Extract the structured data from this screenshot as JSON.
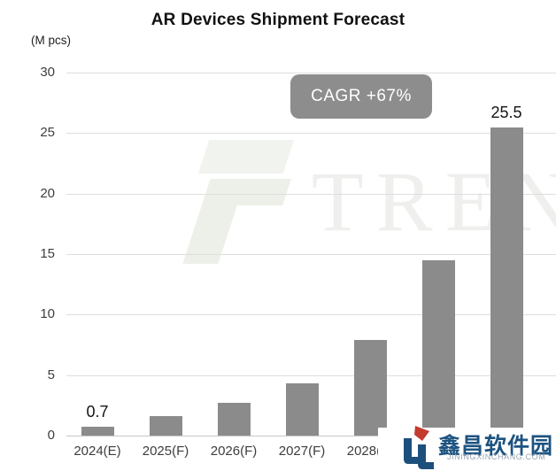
{
  "title": "AR Devices Shipment Forecast",
  "y_axis_unit": "(M pcs)",
  "annotation_badge": "CAGR +67%",
  "watermark": {
    "text": "TREN",
    "mark_name": "trendforce-logo-mark"
  },
  "logo": {
    "cn_text": "鑫昌软件园",
    "domain_text": "JININGXINCHANG.COM",
    "blue": "#1d5380",
    "red": "#c23b2e",
    "domain_gray": "#98a5b5"
  },
  "chart_data": {
    "type": "bar",
    "title": "AR Devices Shipment Forecast",
    "ylabel": "(M pcs)",
    "xlabel": "",
    "categories": [
      "2024(E)",
      "2025(F)",
      "2026(F)",
      "2027(F)",
      "2028(F)",
      "",
      ""
    ],
    "values": [
      0.7,
      1.6,
      2.7,
      4.3,
      7.9,
      14.5,
      25.5
    ],
    "data_labels": [
      {
        "index": 0,
        "text": "0.7"
      },
      {
        "index": 6,
        "text": "25.5"
      }
    ],
    "annotation": "CAGR +67%",
    "ylim": [
      0,
      30
    ],
    "yticks": [
      0,
      5,
      10,
      15,
      20,
      25,
      30
    ],
    "grid": true,
    "legend_position": "none",
    "bar_color": "#8b8b8b",
    "note": "x-axis labels of the last two bars and parts of the bottom-right area are occluded by a site logo plate"
  }
}
